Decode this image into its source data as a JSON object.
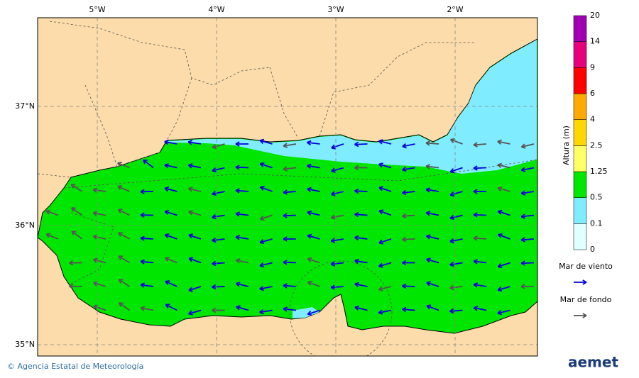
{
  "map": {
    "x_labels": [
      "5°W",
      "4°W",
      "3°W",
      "2°W"
    ],
    "y_labels": [
      "37°N",
      "36°N",
      "35°N"
    ]
  },
  "colorbar": {
    "title": "Altura (m)",
    "labels": [
      "0",
      "0.1",
      "0.5",
      "1.25",
      "2.5",
      "4",
      "6",
      "9",
      "14",
      "20"
    ],
    "colors": [
      "#e0ffff",
      "#80ecff",
      "#00e600",
      "#ffff66",
      "#ffd700",
      "#ffaa00",
      "#ff0000",
      "#e6007a",
      "#a000b0"
    ]
  },
  "legend": [
    {
      "label": "Mar de viento",
      "color": "#0000dd"
    },
    {
      "label": "Mar de fondo",
      "color": "#555555"
    }
  ],
  "footer": {
    "copyright": "© Agencia Estatal de Meteorología",
    "logo": "aemet"
  }
}
